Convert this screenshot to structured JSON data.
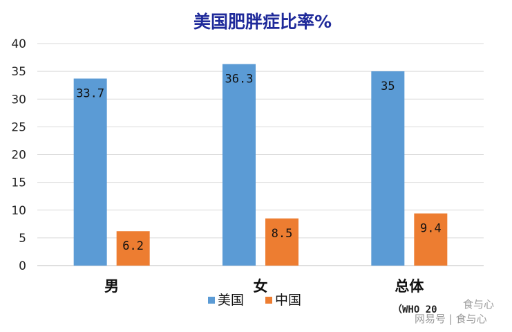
{
  "chart_data": {
    "type": "bar",
    "title": "美国肥胖症比率%",
    "categories": [
      "男",
      "女",
      "总体"
    ],
    "series": [
      {
        "name": "美国",
        "color": "#5b9bd5",
        "values": [
          33.7,
          36.3,
          35
        ]
      },
      {
        "name": "中国",
        "color": "#ed7d31",
        "values": [
          6.2,
          8.5,
          9.4
        ]
      }
    ],
    "data_labels": [
      [
        "33.7",
        "36.3",
        "35"
      ],
      [
        "6.2",
        "8.5",
        "9.4"
      ]
    ],
    "yticks": [
      "0",
      "5",
      "10",
      "15",
      "20",
      "25",
      "30",
      "35",
      "40"
    ],
    "ylim": [
      0,
      40
    ],
    "xlabel": "",
    "ylabel": "",
    "grid": true,
    "legend_position": "bottom-center"
  },
  "source_note": "（WHO 20",
  "watermark": {
    "line1": "食与心",
    "line2": "网易号 | 食与心"
  }
}
